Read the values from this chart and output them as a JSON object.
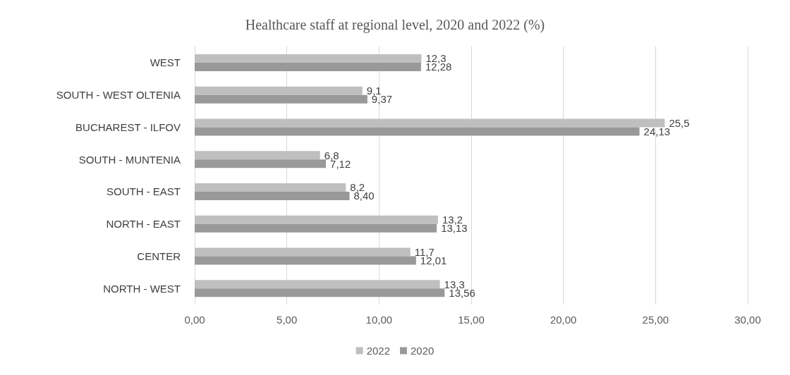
{
  "chart_data": {
    "type": "bar",
    "orientation": "horizontal",
    "title": "Healthcare staff at regional level, 2020 and 2022 (%)",
    "categories": [
      "WEST",
      "SOUTH - WEST OLTENIA",
      "BUCHAREST - ILFOV",
      "SOUTH - MUNTENIA",
      "SOUTH - EAST",
      "NORTH - EAST",
      "CENTER",
      "NORTH - WEST"
    ],
    "series": [
      {
        "name": "2022",
        "color": "#bfbfbf",
        "values": [
          12.3,
          9.1,
          25.5,
          6.8,
          8.2,
          13.2,
          11.7,
          13.3
        ],
        "value_labels": [
          "12,3",
          "9,1",
          "25,5",
          "6,8",
          "8,2",
          "13,2",
          "11,7",
          "13,3"
        ]
      },
      {
        "name": "2020",
        "color": "#999999",
        "values": [
          12.28,
          9.37,
          24.13,
          7.12,
          8.4,
          13.13,
          12.01,
          13.56
        ],
        "value_labels": [
          "12,28",
          "9,37",
          "24,13",
          "7,12",
          "8,40",
          "13,13",
          "12,01",
          "13,56"
        ]
      }
    ],
    "xlim": [
      0,
      30
    ],
    "xticks": [
      {
        "value": 0,
        "label": "0,00"
      },
      {
        "value": 5,
        "label": "5,00"
      },
      {
        "value": 10,
        "label": "10,00"
      },
      {
        "value": 15,
        "label": "15,00"
      },
      {
        "value": 20,
        "label": "20,00"
      },
      {
        "value": 25,
        "label": "25,00"
      },
      {
        "value": 30,
        "label": "30,00"
      }
    ],
    "grid": "x",
    "legend": "bottom"
  }
}
